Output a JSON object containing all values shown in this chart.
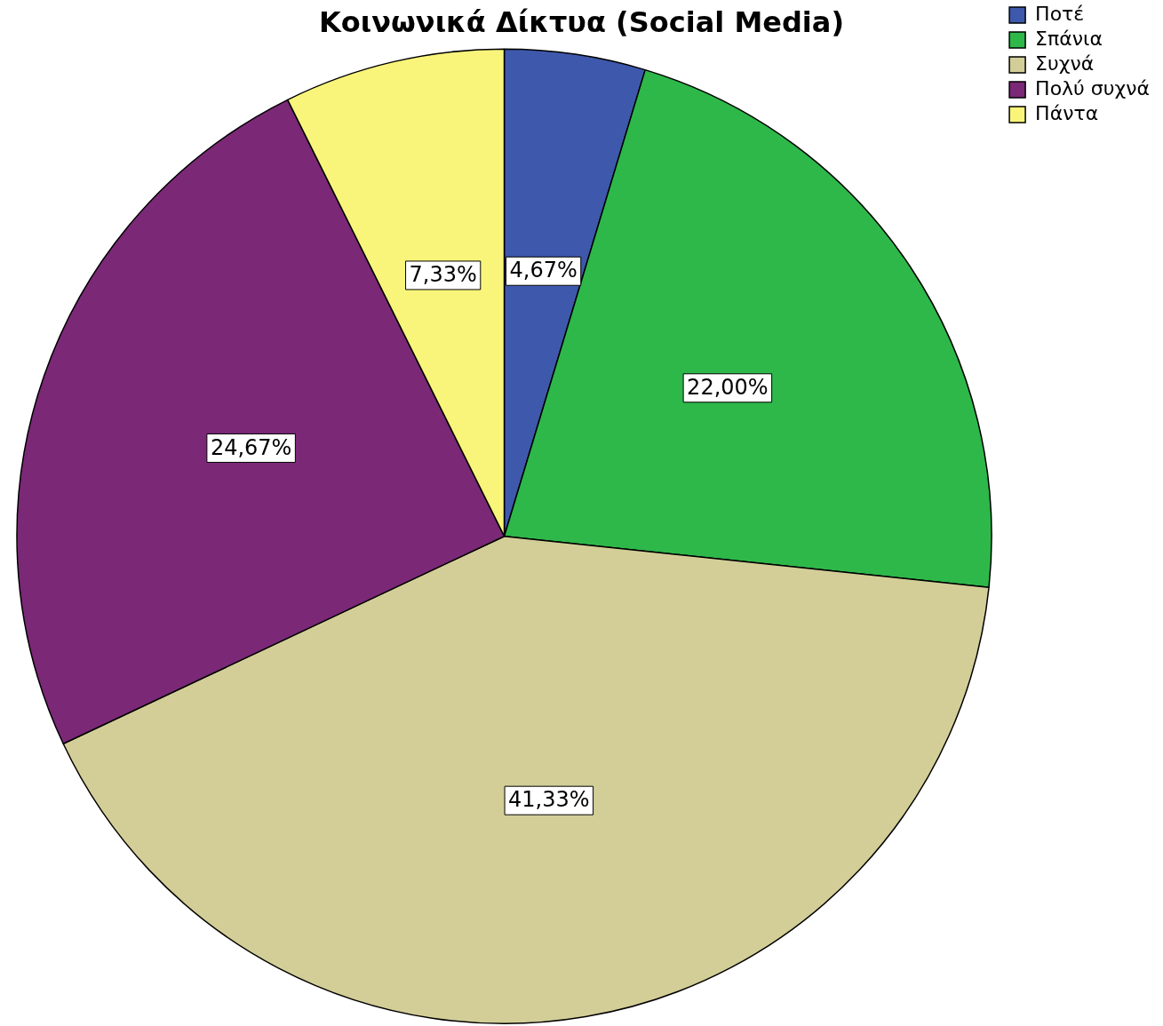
{
  "chart_data": {
    "type": "pie",
    "title": "Κοινωνικά Δίκτυα (Social Media)",
    "categories": [
      "Ποτέ",
      "Σπάνια",
      "Συχνά",
      "Πολύ συχνά",
      "Πάντα"
    ],
    "values": [
      4.67,
      22.0,
      41.33,
      24.67,
      7.33
    ],
    "colors": [
      "#3e58ac",
      "#2eb84a",
      "#d3ce97",
      "#7b2877",
      "#f9f57a"
    ],
    "value_labels": [
      "4,67%",
      "22,00%",
      "41,33%",
      "24,67%",
      "7,33%"
    ],
    "legend": "top right"
  }
}
